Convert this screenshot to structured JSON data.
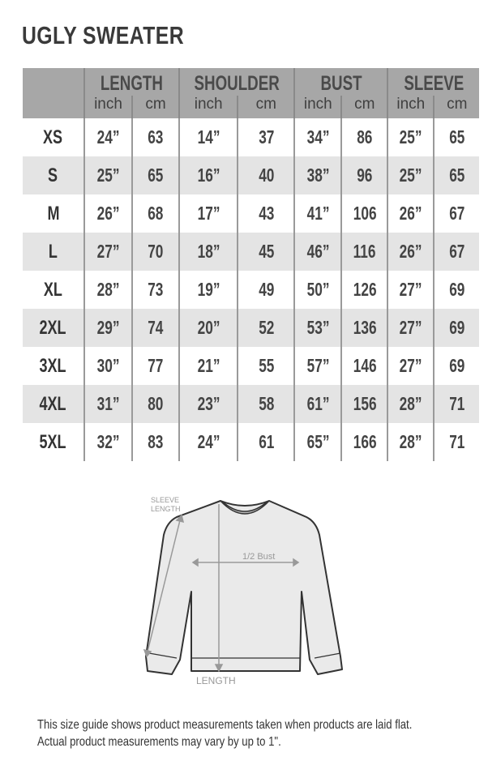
{
  "title": "UGLY SWEATER",
  "groups": [
    "LENGTH",
    "SHOULDER",
    "BUST",
    "SLEEVE"
  ],
  "units": [
    "inch",
    "cm"
  ],
  "rows": [
    {
      "size": "XS",
      "values": [
        "24”",
        "63",
        "14”",
        "37",
        "34”",
        "86",
        "25”",
        "65"
      ]
    },
    {
      "size": "S",
      "values": [
        "25”",
        "65",
        "16”",
        "40",
        "38”",
        "96",
        "25”",
        "65"
      ]
    },
    {
      "size": "M",
      "values": [
        "26”",
        "68",
        "17”",
        "43",
        "41”",
        "106",
        "26”",
        "67"
      ]
    },
    {
      "size": "L",
      "values": [
        "27”",
        "70",
        "18”",
        "45",
        "46”",
        "116",
        "26”",
        "67"
      ]
    },
    {
      "size": "XL",
      "values": [
        "28”",
        "73",
        "19”",
        "49",
        "50”",
        "126",
        "27”",
        "69"
      ]
    },
    {
      "size": "2XL",
      "values": [
        "29”",
        "74",
        "20”",
        "52",
        "53”",
        "136",
        "27”",
        "69"
      ]
    },
    {
      "size": "3XL",
      "values": [
        "30”",
        "77",
        "21”",
        "55",
        "57”",
        "146",
        "27”",
        "69"
      ]
    },
    {
      "size": "4XL",
      "values": [
        "31”",
        "80",
        "23”",
        "58",
        "61”",
        "156",
        "28”",
        "71"
      ]
    },
    {
      "size": "5XL",
      "values": [
        "32”",
        "83",
        "24”",
        "61",
        "65”",
        "166",
        "28”",
        "71"
      ]
    }
  ],
  "diagram": {
    "sleeve_label_1": "SLEEVE",
    "sleeve_label_2": "LENGTH",
    "bust_label": "1/2 Bust",
    "length_label": "LENGTH"
  },
  "note": {
    "line1": "This size guide shows product measurements taken when products are laid flat.",
    "line2": "Actual product measurements may vary by up to 1\"."
  },
  "colors": {
    "header": "#a7a7a7",
    "alt_row": "#e4e4e4"
  }
}
